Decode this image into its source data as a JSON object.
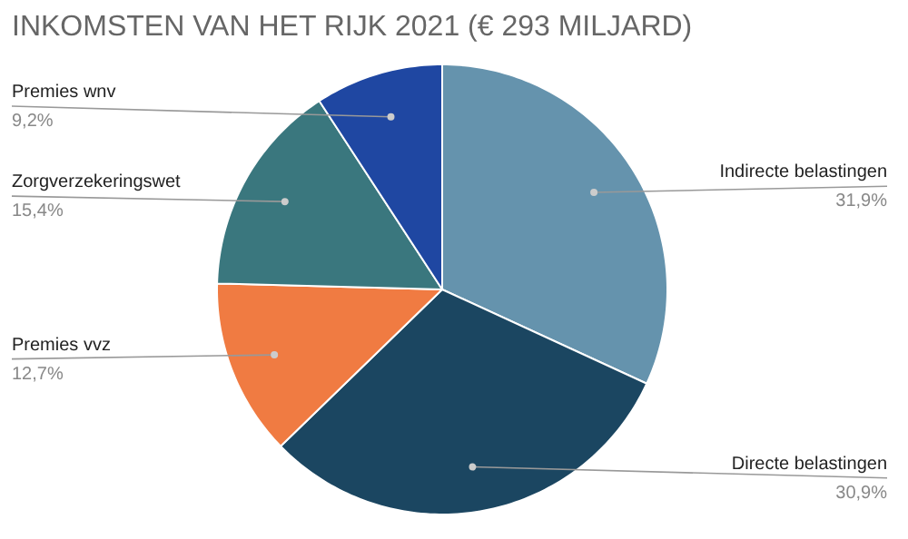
{
  "chart_data": {
    "type": "pie",
    "title": "INKOMSTEN VAN HET RIJK 2021 (€ 293 MILJARD)",
    "categories": [
      "Indirecte belastingen",
      "Directe belastingen",
      "Premies vvz",
      "Zorgverzekeringswet",
      "Premies wnv"
    ],
    "values": [
      31.9,
      30.9,
      12.7,
      15.4,
      9.2
    ],
    "value_labels": [
      "31,9%",
      "30,9%",
      "12,7%",
      "15,4%",
      "9,2%"
    ],
    "colors": [
      "#6593ad",
      "#1b4661",
      "#f07b42",
      "#3a777e",
      "#1f47a2"
    ]
  }
}
